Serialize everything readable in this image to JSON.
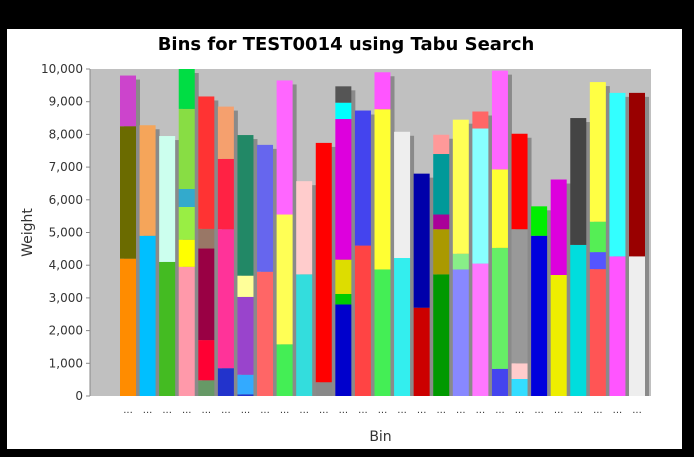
{
  "chart_data": {
    "type": "bar",
    "stacked": true,
    "title": "Bins for TEST0014 using Tabu Search",
    "xlabel": "Bin",
    "ylabel": "Weight",
    "ylim": [
      0,
      10000
    ],
    "yticks": [
      0,
      1000,
      2000,
      3000,
      4000,
      5000,
      6000,
      7000,
      8000,
      9000,
      10000
    ],
    "ytick_labels": [
      "0",
      "1,000",
      "2,000",
      "3,000",
      "4,000",
      "5,000",
      "6,000",
      "7,000",
      "8,000",
      "9,000",
      "10,000"
    ],
    "category_label": "...",
    "background": "#c0c0c0",
    "bins": [
      {
        "segments": [
          {
            "value": 4200,
            "color": "#ff8c00"
          },
          {
            "value": 4050,
            "color": "#6b6b00"
          },
          {
            "value": 1550,
            "color": "#cc44cc"
          }
        ]
      },
      {
        "segments": [
          {
            "value": 4900,
            "color": "#00bfff"
          },
          {
            "value": 3380,
            "color": "#f5a55a"
          }
        ]
      },
      {
        "segments": [
          {
            "value": 4100,
            "color": "#44bb22"
          },
          {
            "value": 3850,
            "color": "#ccffee"
          }
        ]
      },
      {
        "segments": [
          {
            "value": 3950,
            "color": "#ff99aa"
          },
          {
            "value": 830,
            "color": "#ffff00"
          },
          {
            "value": 1000,
            "color": "#99ee44"
          },
          {
            "value": 550,
            "color": "#33aacc"
          },
          {
            "value": 2450,
            "color": "#88dd44"
          },
          {
            "value": 1220,
            "color": "#00dd44"
          }
        ]
      },
      {
        "segments": [
          {
            "value": 480,
            "color": "#669966"
          },
          {
            "value": 1230,
            "color": "#ff0033"
          },
          {
            "value": 2800,
            "color": "#990044"
          },
          {
            "value": 600,
            "color": "#997766"
          },
          {
            "value": 4050,
            "color": "#ff3333"
          }
        ]
      },
      {
        "segments": [
          {
            "value": 850,
            "color": "#2233cc"
          },
          {
            "value": 4250,
            "color": "#ff3399"
          },
          {
            "value": 2150,
            "color": "#ff2244"
          },
          {
            "value": 1600,
            "color": "#f5a06e"
          }
        ]
      },
      {
        "segments": [
          {
            "value": 50,
            "color": "#2233cc"
          },
          {
            "value": 600,
            "color": "#33aaff"
          },
          {
            "value": 2380,
            "color": "#9944cc"
          },
          {
            "value": 650,
            "color": "#ffff99"
          },
          {
            "value": 4300,
            "color": "#228866"
          }
        ]
      },
      {
        "segments": [
          {
            "value": 3800,
            "color": "#ff6666"
          },
          {
            "value": 3880,
            "color": "#6666ee"
          }
        ]
      },
      {
        "segments": [
          {
            "value": 1580,
            "color": "#44ee55"
          },
          {
            "value": 3970,
            "color": "#ffff55"
          },
          {
            "value": 4100,
            "color": "#ff66ff"
          }
        ]
      },
      {
        "segments": [
          {
            "value": 3720,
            "color": "#33dddd"
          },
          {
            "value": 2850,
            "color": "#ffcccc"
          }
        ]
      },
      {
        "segments": [
          {
            "value": 420,
            "color": "#888888"
          },
          {
            "value": 7320,
            "color": "#ff0000"
          }
        ]
      },
      {
        "segments": [
          {
            "value": 2800,
            "color": "#0000cc"
          },
          {
            "value": 320,
            "color": "#00cc00"
          },
          {
            "value": 1050,
            "color": "#dddd00"
          },
          {
            "value": 4300,
            "color": "#dd00dd"
          },
          {
            "value": 500,
            "color": "#00ffff"
          },
          {
            "value": 500,
            "color": "#555555"
          }
        ]
      },
      {
        "segments": [
          {
            "value": 4600,
            "color": "#ff4444"
          },
          {
            "value": 4130,
            "color": "#4444ee"
          }
        ]
      },
      {
        "segments": [
          {
            "value": 3870,
            "color": "#44ee55"
          },
          {
            "value": 4900,
            "color": "#ffff33"
          },
          {
            "value": 1130,
            "color": "#ff55ff"
          }
        ]
      },
      {
        "segments": [
          {
            "value": 4220,
            "color": "#33eeee"
          },
          {
            "value": 3860,
            "color": "#eeeeee"
          }
        ]
      },
      {
        "segments": [
          {
            "value": 2700,
            "color": "#cc0000"
          },
          {
            "value": 4100,
            "color": "#0000aa"
          }
        ]
      },
      {
        "segments": [
          {
            "value": 3720,
            "color": "#009900"
          },
          {
            "value": 1380,
            "color": "#aa9900"
          },
          {
            "value": 450,
            "color": "#aa0099"
          },
          {
            "value": 1850,
            "color": "#009999"
          },
          {
            "value": 590,
            "color": "#ff9999"
          }
        ]
      },
      {
        "segments": [
          {
            "value": 3870,
            "color": "#8888ff"
          },
          {
            "value": 480,
            "color": "#88ee88"
          },
          {
            "value": 4100,
            "color": "#ffff55"
          }
        ]
      },
      {
        "segments": [
          {
            "value": 4050,
            "color": "#ff77ff"
          },
          {
            "value": 4130,
            "color": "#88ffff"
          },
          {
            "value": 520,
            "color": "#ff6666"
          }
        ]
      },
      {
        "segments": [
          {
            "value": 830,
            "color": "#4444ee"
          },
          {
            "value": 3700,
            "color": "#66ee66"
          },
          {
            "value": 2400,
            "color": "#ffff33"
          },
          {
            "value": 3020,
            "color": "#ff66ff"
          }
        ]
      },
      {
        "segments": [
          {
            "value": 520,
            "color": "#33ddff"
          },
          {
            "value": 480,
            "color": "#ffcccc"
          },
          {
            "value": 4100,
            "color": "#999999"
          },
          {
            "value": 2920,
            "color": "#ff0000"
          }
        ]
      },
      {
        "segments": [
          {
            "value": 4900,
            "color": "#0000dd"
          },
          {
            "value": 900,
            "color": "#00ee00"
          }
        ]
      },
      {
        "segments": [
          {
            "value": 3700,
            "color": "#eeee00"
          },
          {
            "value": 2920,
            "color": "#dd00dd"
          }
        ]
      },
      {
        "segments": [
          {
            "value": 4620,
            "color": "#00dddd"
          },
          {
            "value": 3880,
            "color": "#444444"
          }
        ]
      },
      {
        "segments": [
          {
            "value": 3880,
            "color": "#ff5555"
          },
          {
            "value": 520,
            "color": "#5555ff"
          },
          {
            "value": 930,
            "color": "#55ee55"
          },
          {
            "value": 4270,
            "color": "#ffff44"
          }
        ]
      },
      {
        "segments": [
          {
            "value": 4270,
            "color": "#ff55ff"
          },
          {
            "value": 5000,
            "color": "#33ffff"
          }
        ]
      },
      {
        "segments": [
          {
            "value": 4270,
            "color": "#eeeeee"
          },
          {
            "value": 5000,
            "color": "#990000"
          }
        ]
      }
    ]
  }
}
